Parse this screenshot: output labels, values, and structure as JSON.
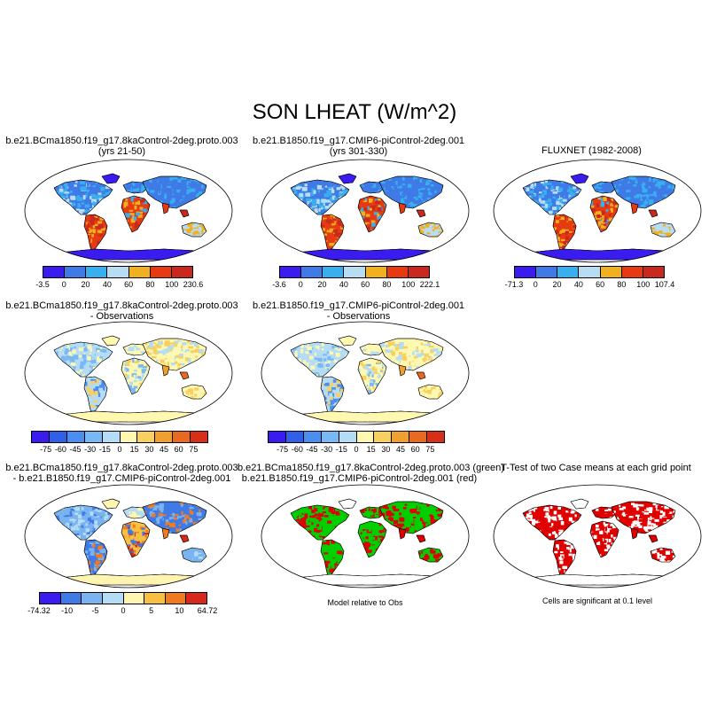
{
  "title": "SON LHEAT (W/m^2)",
  "panels": {
    "p1": {
      "line1": "b.e21.BCma1850.f19_g17.8kaControl-2deg.proto.003",
      "line2": "(yrs 21-50)",
      "ticks": [
        "-3.5",
        "0",
        "20",
        "40",
        "60",
        "80",
        "100",
        "230.6"
      ]
    },
    "p2": {
      "line1": "b.e21.B1850.f19_g17.CMIP6-piControl-2deg.001",
      "line2": "(yrs 301-330)",
      "ticks": [
        "-3.6",
        "0",
        "20",
        "40",
        "60",
        "80",
        "100",
        "222.1"
      ]
    },
    "p3": {
      "line1": "FLUXNET (1982-2008)",
      "ticks": [
        "-71.3",
        "0",
        "20",
        "40",
        "60",
        "80",
        "100",
        "107.4"
      ]
    },
    "p4": {
      "line1": "b.e21.BCma1850.f19_g17.8kaControl-2deg.proto.003",
      "line2": "- Observations",
      "ticks": [
        "-75",
        "-60",
        "-45",
        "-30",
        "-15",
        "0",
        "15",
        "30",
        "45",
        "60",
        "75"
      ]
    },
    "p5": {
      "line1": "b.e21.B1850.f19_g17.CMIP6-piControl-2deg.001",
      "line2": "- Observations",
      "ticks": [
        "-75",
        "-60",
        "-45",
        "-30",
        "-15",
        "0",
        "15",
        "30",
        "45",
        "60",
        "75"
      ]
    },
    "p7": {
      "line1": "b.e21.BCma1850.f19_g17.8kaControl-2deg.proto.003",
      "line2": "- b.e21.B1850.f19_g17.CMIP6-piControl-2deg.001",
      "ticks": [
        "-74.32",
        "-10",
        "-5",
        "0",
        "5",
        "10",
        "64.72"
      ]
    },
    "p8": {
      "line1": "b.e21.BCma1850.f19_g17.8kaControl-2deg.proto.003 (green)",
      "line2": "b.e21.B1850.f19_g17.CMIP6-piControl-2deg.001 (red)",
      "note": "Model relative to Obs"
    },
    "p9": {
      "line1": "T-Test of two Case means at each grid point",
      "note": "Cells are significant at 0.1 level"
    }
  },
  "colors": {
    "abs_scale": [
      "#3a1cf0",
      "#3f7ae6",
      "#38b0f0",
      "#b8dcf2",
      "#f0b020",
      "#e83a10",
      "#c8281e"
    ],
    "diff_scale": [
      "#3a1cf0",
      "#3060e8",
      "#4a8ef0",
      "#78b8f5",
      "#b4dcf5",
      "#fff8b0",
      "#f8d060",
      "#f0a030",
      "#e86a20",
      "#d83018"
    ],
    "pdiff_scale": [
      "#3a1cf0",
      "#3f7ae6",
      "#7ab4f0",
      "#b4dcf5",
      "#fff4b0",
      "#f8c040",
      "#f07a20",
      "#d8281e"
    ],
    "green": "#00d000",
    "red": "#e00000"
  }
}
